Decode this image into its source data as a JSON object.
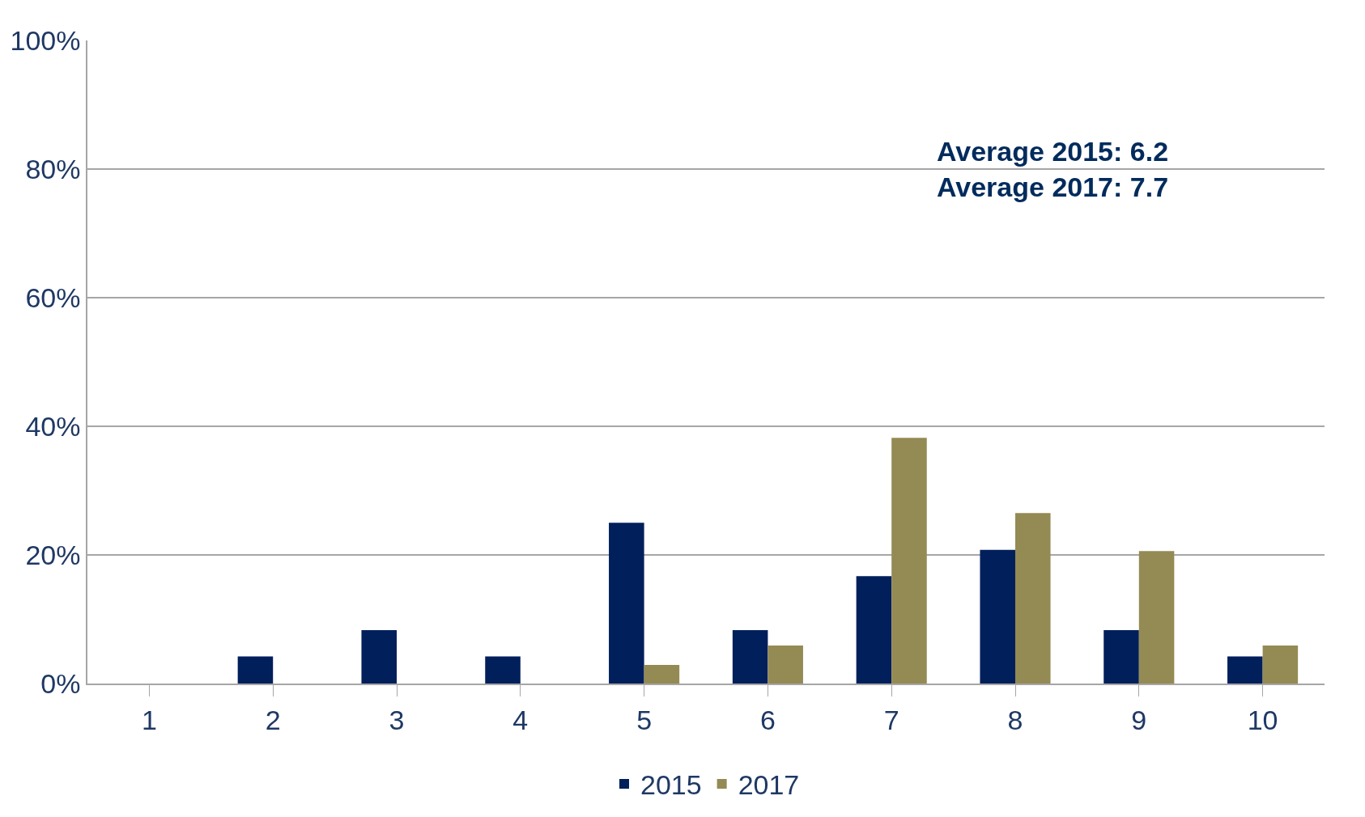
{
  "chart_data": {
    "type": "bar",
    "categories": [
      "1",
      "2",
      "3",
      "4",
      "5",
      "6",
      "7",
      "8",
      "9",
      "10"
    ],
    "series": [
      {
        "name": "2015",
        "color": "#001f5b",
        "values": [
          0,
          4.2,
          8.3,
          4.2,
          25,
          8.3,
          16.7,
          20.8,
          8.3,
          4.2
        ]
      },
      {
        "name": "2017",
        "color": "#948a54",
        "values": [
          0,
          0,
          0,
          0,
          2.9,
          5.9,
          38.2,
          26.5,
          20.6,
          5.9
        ]
      }
    ],
    "ylim": [
      0,
      100
    ],
    "yticks": [
      {
        "value": 0,
        "label": "0%"
      },
      {
        "value": 20,
        "label": "20%"
      },
      {
        "value": 40,
        "label": "40%"
      },
      {
        "value": 60,
        "label": "60%"
      },
      {
        "value": 80,
        "label": "80%"
      },
      {
        "value": 100,
        "label": "100%"
      }
    ],
    "grid": "y",
    "legend": "bottom",
    "annotations": [
      "Average 2015: 6.2",
      "Average 2017: 7.7"
    ]
  }
}
